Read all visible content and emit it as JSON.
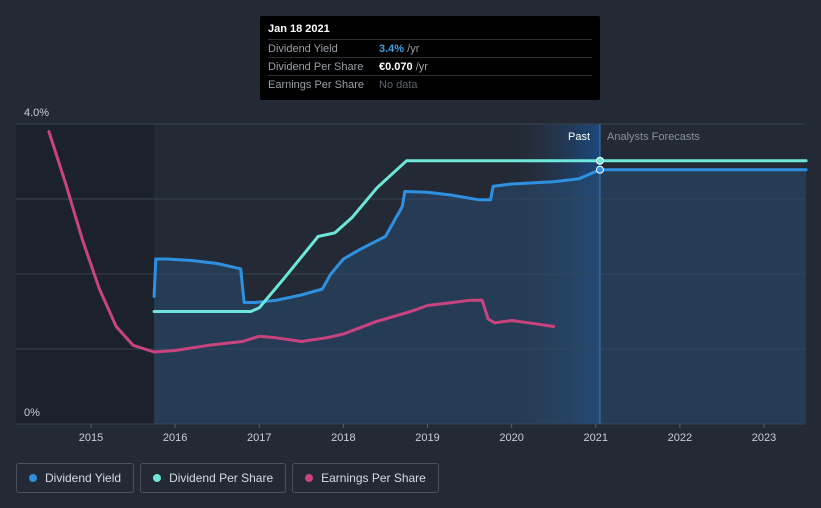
{
  "tooltip": {
    "date": "Jan 18 2021",
    "rows": [
      {
        "label": "Dividend Yield",
        "value": "3.4%",
        "unit": " /yr",
        "color": "#3fa0e6"
      },
      {
        "label": "Dividend Per Share",
        "value": "€0.070",
        "unit": " /yr",
        "color": "#ffffff"
      },
      {
        "label": "Earnings Per Share",
        "value": "No data",
        "unit": "",
        "color": "#5d636c"
      }
    ]
  },
  "regions": {
    "past": "Past",
    "forecast": "Analysts Forecasts"
  },
  "legend": [
    {
      "label": "Dividend Yield",
      "color": "#2e90e0"
    },
    {
      "label": "Dividend Per Share",
      "color": "#6ee6d9"
    },
    {
      "label": "Earnings Per Share",
      "color": "#c9447e"
    }
  ],
  "chart_data": {
    "type": "line",
    "title": "",
    "xlabel": "",
    "ylabel": "",
    "x_ticks": [
      "2015",
      "2016",
      "2017",
      "2018",
      "2019",
      "2020",
      "2021",
      "2022",
      "2023"
    ],
    "y_ticks": [
      "0%",
      "4.0%"
    ],
    "ylim": [
      0,
      4.0
    ],
    "xlim": [
      2014.5,
      2023.5
    ],
    "grid": true,
    "legend_position": "bottom-left",
    "series": [
      {
        "name": "Dividend Yield",
        "color": "#2e90e0",
        "area": true,
        "points": [
          [
            2015.75,
            1.7
          ],
          [
            2015.77,
            2.2
          ],
          [
            2015.9,
            2.2
          ],
          [
            2016.2,
            2.18
          ],
          [
            2016.5,
            2.14
          ],
          [
            2016.78,
            2.07
          ],
          [
            2016.82,
            1.62
          ],
          [
            2016.95,
            1.62
          ],
          [
            2017.2,
            1.65
          ],
          [
            2017.5,
            1.72
          ],
          [
            2017.75,
            1.8
          ],
          [
            2017.85,
            2.0
          ],
          [
            2018.0,
            2.2
          ],
          [
            2018.2,
            2.33
          ],
          [
            2018.5,
            2.5
          ],
          [
            2018.7,
            2.9
          ],
          [
            2018.73,
            3.1
          ],
          [
            2019.0,
            3.09
          ],
          [
            2019.3,
            3.05
          ],
          [
            2019.6,
            2.99
          ],
          [
            2019.75,
            2.99
          ],
          [
            2019.78,
            3.17
          ],
          [
            2020.0,
            3.2
          ],
          [
            2020.5,
            3.23
          ],
          [
            2020.8,
            3.27
          ],
          [
            2021.05,
            3.39
          ],
          [
            2023.5,
            3.39
          ]
        ]
      },
      {
        "name": "Dividend Per Share",
        "color": "#6ee6d9",
        "area": false,
        "points": [
          [
            2015.75,
            1.5
          ],
          [
            2016.9,
            1.5
          ],
          [
            2017.0,
            1.55
          ],
          [
            2017.3,
            1.95
          ],
          [
            2017.7,
            2.5
          ],
          [
            2017.9,
            2.55
          ],
          [
            2018.1,
            2.75
          ],
          [
            2018.4,
            3.15
          ],
          [
            2018.75,
            3.51
          ],
          [
            2023.5,
            3.51
          ]
        ]
      },
      {
        "name": "Earnings Per Share",
        "color": "#c9447e",
        "area": false,
        "points": [
          [
            2014.5,
            3.9
          ],
          [
            2014.7,
            3.2
          ],
          [
            2014.9,
            2.45
          ],
          [
            2015.1,
            1.8
          ],
          [
            2015.3,
            1.3
          ],
          [
            2015.5,
            1.05
          ],
          [
            2015.75,
            0.96
          ],
          [
            2016.0,
            0.98
          ],
          [
            2016.4,
            1.05
          ],
          [
            2016.8,
            1.1
          ],
          [
            2017.0,
            1.17
          ],
          [
            2017.2,
            1.15
          ],
          [
            2017.5,
            1.1
          ],
          [
            2017.8,
            1.15
          ],
          [
            2018.0,
            1.2
          ],
          [
            2018.4,
            1.37
          ],
          [
            2018.8,
            1.5
          ],
          [
            2019.0,
            1.58
          ],
          [
            2019.3,
            1.62
          ],
          [
            2019.5,
            1.65
          ],
          [
            2019.65,
            1.65
          ],
          [
            2019.72,
            1.4
          ],
          [
            2019.8,
            1.35
          ],
          [
            2020.0,
            1.38
          ],
          [
            2020.2,
            1.35
          ],
          [
            2020.5,
            1.3
          ]
        ]
      }
    ],
    "markers": [
      {
        "series": "Dividend Per Share",
        "x": 2021.05,
        "y": 3.51
      },
      {
        "series": "Dividend Yield",
        "x": 2021.05,
        "y": 3.39
      }
    ],
    "past_forecast_divider_x": 2021.05
  }
}
